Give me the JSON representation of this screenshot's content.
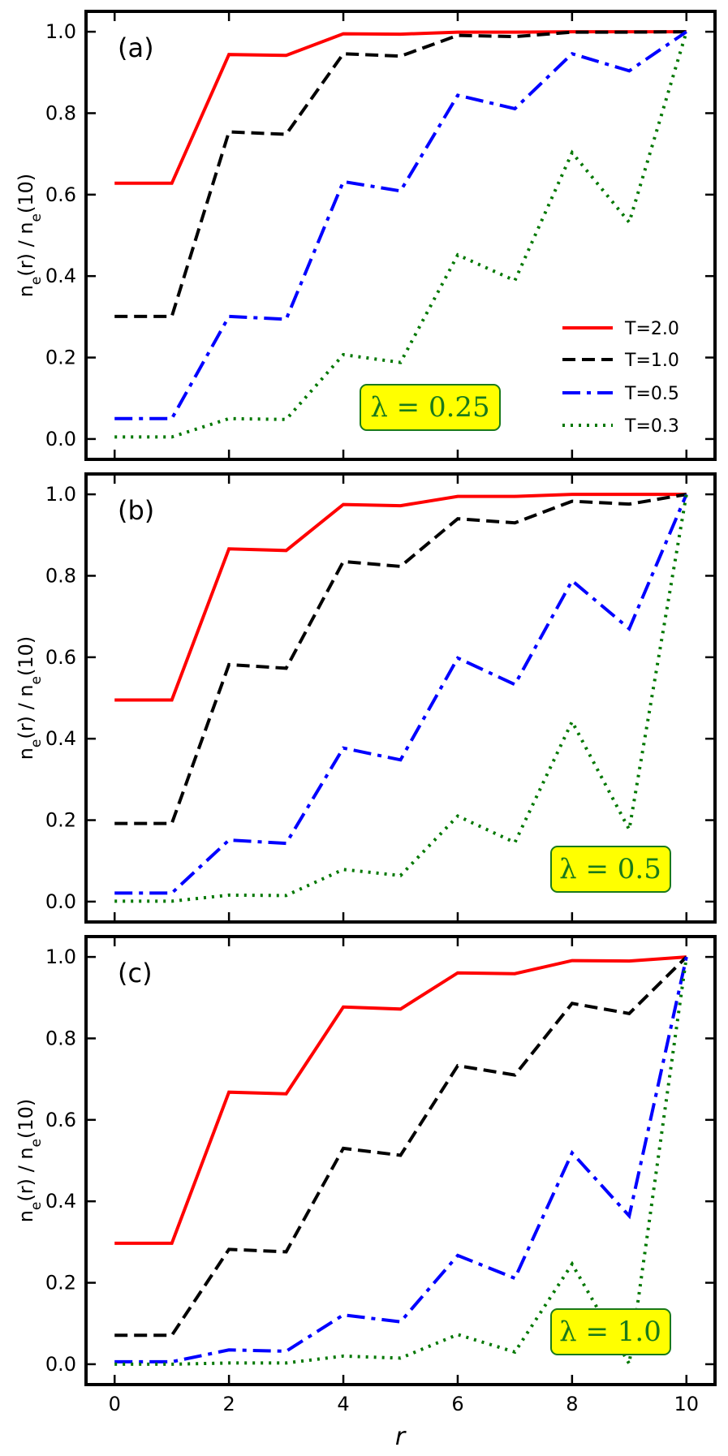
{
  "chart_data": [
    {
      "type": "line",
      "panel_label": "(a)",
      "annotation": "λ = 0.25",
      "annotation_position": "bottom-center",
      "xlabel": "",
      "ylabel": "n_e(r) / n_e(10)",
      "xlim": [
        -0.5,
        10.5
      ],
      "ylim": [
        -0.05,
        1.05
      ],
      "legend_position": "bottom-right",
      "x": [
        0,
        1,
        2,
        3,
        4,
        5,
        6,
        7,
        8,
        9,
        10
      ],
      "series": [
        {
          "name": "T=2.0",
          "color": "#ff0000",
          "style": "solid",
          "values": [
            0.628,
            0.628,
            0.944,
            0.942,
            0.995,
            0.994,
            0.999,
            0.999,
            1.0,
            1.0,
            1.0
          ]
        },
        {
          "name": "T=1.0",
          "color": "#000000",
          "style": "dashed",
          "values": [
            0.301,
            0.301,
            0.754,
            0.748,
            0.946,
            0.94,
            0.991,
            0.988,
            0.999,
            0.999,
            1.0
          ]
        },
        {
          "name": "T=0.5",
          "color": "#0000ff",
          "style": "dashdot",
          "values": [
            0.05,
            0.05,
            0.301,
            0.294,
            0.632,
            0.609,
            0.844,
            0.811,
            0.946,
            0.904,
            1.0
          ]
        },
        {
          "name": "T=0.3",
          "color": "#007700",
          "style": "dotted",
          "values": [
            0.005,
            0.005,
            0.05,
            0.048,
            0.207,
            0.188,
            0.452,
            0.389,
            0.703,
            0.532,
            1.0
          ]
        }
      ]
    },
    {
      "type": "line",
      "panel_label": "(b)",
      "annotation": "λ = 0.5",
      "annotation_position": "bottom-right",
      "xlabel": "",
      "ylabel": "n_e(r) / n_e(10)",
      "xlim": [
        -0.5,
        10.5
      ],
      "ylim": [
        -0.05,
        1.05
      ],
      "x": [
        0,
        1,
        2,
        3,
        4,
        5,
        6,
        7,
        8,
        9,
        10
      ],
      "series": [
        {
          "name": "T=2.0",
          "color": "#ff0000",
          "style": "solid",
          "values": [
            0.495,
            0.495,
            0.866,
            0.862,
            0.975,
            0.972,
            0.995,
            0.995,
            1.0,
            1.0,
            1.0
          ]
        },
        {
          "name": "T=1.0",
          "color": "#000000",
          "style": "dashed",
          "values": [
            0.192,
            0.192,
            0.582,
            0.573,
            0.835,
            0.823,
            0.94,
            0.93,
            0.983,
            0.976,
            1.0
          ]
        },
        {
          "name": "T=0.5",
          "color": "#0000ff",
          "style": "dashdot",
          "values": [
            0.021,
            0.021,
            0.151,
            0.143,
            0.377,
            0.348,
            0.598,
            0.533,
            0.788,
            0.67,
            1.0
          ]
        },
        {
          "name": "T=0.3",
          "color": "#007700",
          "style": "dotted",
          "values": [
            0.001,
            0.001,
            0.016,
            0.015,
            0.079,
            0.064,
            0.21,
            0.145,
            0.442,
            0.177,
            1.0
          ]
        }
      ]
    },
    {
      "type": "line",
      "panel_label": "(c)",
      "annotation": "λ = 1.0",
      "annotation_position": "bottom-right",
      "xlabel": "r",
      "ylabel": "n_e(r) / n_e(10)",
      "xlim": [
        -0.5,
        10.5
      ],
      "ylim": [
        -0.05,
        1.05
      ],
      "x": [
        0,
        1,
        2,
        3,
        4,
        5,
        6,
        7,
        8,
        9,
        10
      ],
      "x_ticks": [
        0,
        2,
        4,
        6,
        8,
        10
      ],
      "series": [
        {
          "name": "T=2.0",
          "color": "#ff0000",
          "style": "solid",
          "values": [
            0.297,
            0.297,
            0.668,
            0.664,
            0.877,
            0.872,
            0.961,
            0.959,
            0.991,
            0.99,
            1.0
          ]
        },
        {
          "name": "T=1.0",
          "color": "#000000",
          "style": "dashed",
          "values": [
            0.071,
            0.071,
            0.282,
            0.276,
            0.53,
            0.513,
            0.733,
            0.71,
            0.886,
            0.861,
            1.0
          ]
        },
        {
          "name": "T=0.5",
          "color": "#0000ff",
          "style": "dashdot",
          "values": [
            0.006,
            0.006,
            0.035,
            0.032,
            0.121,
            0.104,
            0.267,
            0.211,
            0.519,
            0.364,
            1.0
          ]
        },
        {
          "name": "T=0.3",
          "color": "#007700",
          "style": "dotted",
          "values": [
            0.0,
            0.0,
            0.003,
            0.003,
            0.02,
            0.015,
            0.073,
            0.03,
            0.246,
            0.001,
            1.0
          ]
        }
      ]
    }
  ],
  "y_ticks": [
    "0.0",
    "0.2",
    "0.4",
    "0.6",
    "0.8",
    "1.0"
  ],
  "x_tick_labels": [
    "0",
    "2",
    "4",
    "6",
    "8",
    "10"
  ]
}
